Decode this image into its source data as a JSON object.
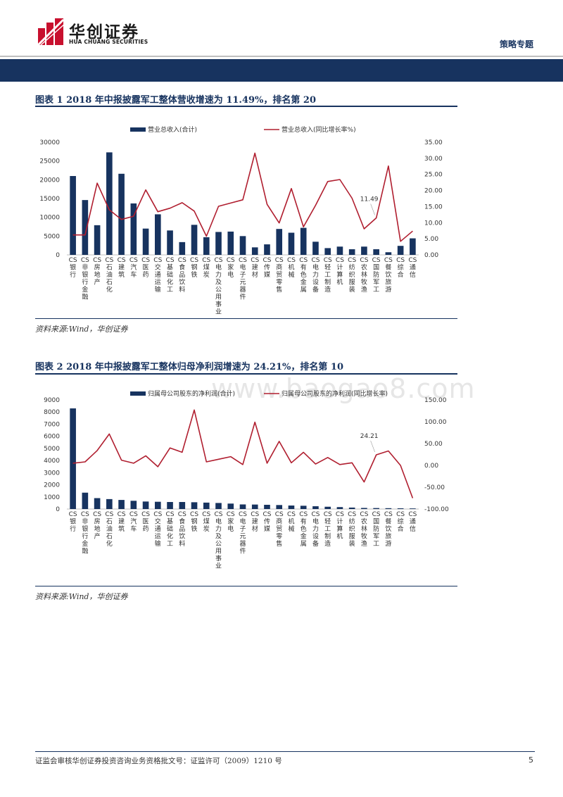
{
  "header": {
    "brand_cn": "华创证券",
    "brand_en": "HUA CHUANG SECURITIES",
    "section": "策略专题",
    "colors": {
      "navy": "#17335f",
      "red": "#c8102e"
    }
  },
  "watermark": "www.baogao8.com",
  "figures": [
    {
      "title": "图表 1    2018 年中报披露军工整体营收增速为 11.49%，排名第 20",
      "source": "资料来源:Wind，华创证券"
    },
    {
      "title": "图表 2    2018 年中报披露军工整体归母净利润增速为 24.21%，排名第 10",
      "source": "资料来源:Wind，华创证券"
    }
  ],
  "footer": {
    "text": "证监会审核华创证券投资咨询业务资格批文号：证监许可（2009）1210 号",
    "page": "5"
  },
  "chart_data": [
    {
      "type": "bar+line",
      "categories": [
        "CS银行",
        "CS非银行金融",
        "CS房地产",
        "CS石油石化",
        "CS建筑",
        "CS汽车",
        "CS医药",
        "CS交通运输",
        "CS基础化工",
        "CS食品饮料",
        "CS钢铁",
        "CS煤炭",
        "CS电力及公用事业",
        "CS家电",
        "CS电子元器件",
        "CS建材",
        "CS传媒",
        "CS商贸零售",
        "CS机械",
        "CS有色金属",
        "CS电力设备",
        "CS轻工制造",
        "CS计算机",
        "CS纺织服装",
        "CS农林牧渔",
        "CS国防军工",
        "CS餐饮旅游",
        "CS综合",
        "CS通信"
      ],
      "series": [
        {
          "name": "营业总收入(合计)",
          "kind": "bar",
          "axis": "left",
          "color": "#17335f",
          "values": [
            21000,
            14600,
            7900,
            27300,
            21600,
            13700,
            7000,
            10800,
            6500,
            3400,
            8000,
            4700,
            6100,
            6200,
            5000,
            2000,
            2800,
            6900,
            5900,
            7200,
            3500,
            1800,
            2200,
            1500,
            2200,
            1500,
            700,
            2400,
            4400
          ]
        },
        {
          "name": "营业总收入(同比增长率%)",
          "kind": "line",
          "axis": "right",
          "color": "#b01e2f",
          "values": [
            6.2,
            6.2,
            22.3,
            14,
            11,
            12,
            20.2,
            13.4,
            14.5,
            16.2,
            13.6,
            5.8,
            15.1,
            16.1,
            17.1,
            31.6,
            15.7,
            9.9,
            20.6,
            8.7,
            15.4,
            22.8,
            23.4,
            17.6,
            8.1,
            11.49,
            27.6,
            4.2,
            7.4
          ]
        }
      ],
      "y_left": {
        "min": 0,
        "max": 30000,
        "step": 5000,
        "labels": [
          "0",
          "5000",
          "10000",
          "15000",
          "20000",
          "25000",
          "30000"
        ]
      },
      "y_right": {
        "min": 0,
        "max": 35,
        "step": 5,
        "labels": [
          "0.00",
          "5.00",
          "10.00",
          "15.00",
          "20.00",
          "25.00",
          "30.00",
          "35.00"
        ]
      },
      "annotation": {
        "index": 25,
        "text": "11.49"
      },
      "legend": "top"
    },
    {
      "type": "bar+line",
      "categories": [
        "CS银行",
        "CS非银行金融",
        "CS房地产",
        "CS石油石化",
        "CS建筑",
        "CS汽车",
        "CS医药",
        "CS交通运输",
        "CS基础化工",
        "CS食品饮料",
        "CS钢铁",
        "CS煤炭",
        "CS电力及公用事业",
        "CS家电",
        "CS电子元器件",
        "CS建材",
        "CS传媒",
        "CS商贸零售",
        "CS机械",
        "CS有色金属",
        "CS电力设备",
        "CS轻工制造",
        "CS计算机",
        "CS纺织服装",
        "CS农林牧渔",
        "CS国防军工",
        "CS餐饮旅游",
        "CS综合",
        "CS通信"
      ],
      "series": [
        {
          "name": "归属母公司股东的净利润(合计)",
          "kind": "bar",
          "axis": "left",
          "color": "#17335f",
          "values": [
            8300,
            1350,
            900,
            820,
            750,
            680,
            620,
            600,
            580,
            580,
            560,
            530,
            500,
            450,
            380,
            370,
            350,
            330,
            290,
            270,
            230,
            190,
            160,
            120,
            90,
            80,
            70,
            60,
            50
          ]
        },
        {
          "name": "归属母公司股东的净利润(同比增长率)",
          "kind": "line",
          "axis": "right",
          "color": "#b01e2f",
          "values": [
            5,
            8,
            34,
            72,
            12,
            5,
            22,
            -3,
            40,
            30,
            127,
            8,
            14,
            20,
            2,
            99,
            5,
            55,
            6,
            30,
            3,
            18,
            2,
            6,
            -38,
            24.21,
            33,
            0,
            -75
          ]
        }
      ],
      "y_left": {
        "min": 0,
        "max": 9000,
        "step": 1000,
        "labels": [
          "0",
          "1000",
          "2000",
          "3000",
          "4000",
          "5000",
          "6000",
          "7000",
          "8000",
          "9000"
        ]
      },
      "y_right": {
        "min": -100,
        "max": 150,
        "step": 50,
        "labels": [
          "-100.00",
          "-50.00",
          "0.00",
          "50.00",
          "100.00",
          "150.00"
        ]
      },
      "annotation": {
        "index": 25,
        "text": "24.21"
      },
      "legend": "top"
    }
  ]
}
